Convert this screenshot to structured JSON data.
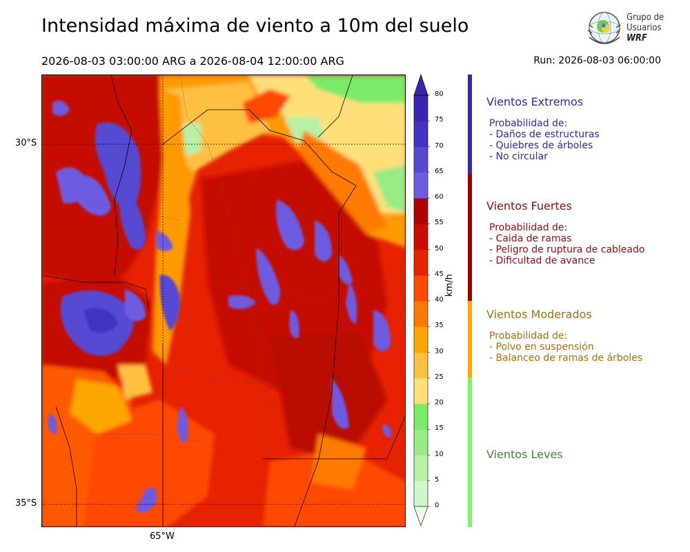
{
  "title": "Intensidad máxima de viento a 10m del suelo",
  "period": "2026-08-03 03:00:00 ARG  a  2026-08-04 12:00:00 ARG",
  "run": "Run: 2026-08-03 06:00:00",
  "logo": {
    "line1": "Grupo de",
    "line2": "Usuarios",
    "line3": "WRF"
  },
  "map": {
    "lat_labels": [
      "30°S",
      "35°S"
    ],
    "lon_labels": [
      "65°W"
    ]
  },
  "colorbar": {
    "unit": "km/h",
    "ticks": [
      "0",
      "5",
      "10",
      "15",
      "20",
      "25",
      "30",
      "35",
      "40",
      "45",
      "50",
      "55",
      "60",
      "65",
      "70",
      "75",
      "80"
    ],
    "colors": [
      "#e9fbe6",
      "#d2f6c9",
      "#b6f1a6",
      "#97ec86",
      "#7aea68",
      "#ffdf7a",
      "#ffc042",
      "#ffa500",
      "#ff7a00",
      "#ff4a00",
      "#e62200",
      "#cc0c00",
      "#b00000",
      "#6e5ce0",
      "#5748d2",
      "#4333c2",
      "#3a24b0"
    ]
  },
  "legend": {
    "categories": [
      {
        "name": "Vientos Extremos",
        "color": "#3a24b0",
        "line_color": "#3a24b0",
        "lines": [
          "Probabilidad de:",
          "- Daños de estructuras",
          "- Quiebres de árboles",
          "- No circular"
        ]
      },
      {
        "name": "Vientos Fuertes",
        "color": "#9b0a0a",
        "line_color": "#a00000",
        "lines": [
          "Probabilidad de:",
          "- Caida de ramas",
          "- Peligro de ruptura de cableado",
          "- Dificultad de avance"
        ]
      },
      {
        "name": "Vientos Moderados",
        "color": "#a6720a",
        "line_color": "#ffa500",
        "lines": [
          "Probabilidad de:",
          "- Polvo en suspensión",
          "- Balanceo de ramas de árboles"
        ]
      },
      {
        "name": "Vientos Leves",
        "color": "#3a8a3a",
        "line_color": "#7cf06a",
        "lines": []
      }
    ]
  }
}
